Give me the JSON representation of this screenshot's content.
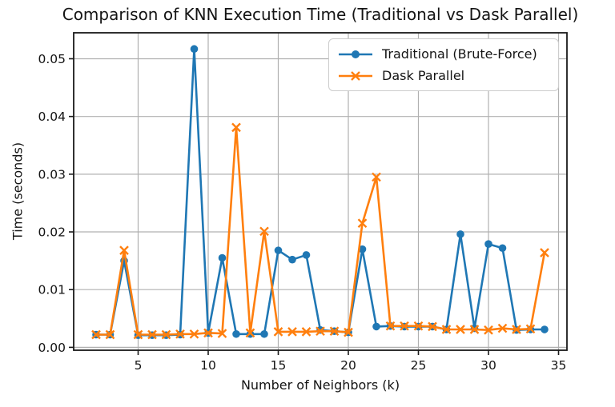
{
  "chart_data": {
    "type": "line",
    "title": "Comparison of KNN Execution Time (Traditional vs Dask Parallel)",
    "xlabel": "Number of Neighbors (k)",
    "ylabel": "Time (seconds)",
    "grid": true,
    "legend_position": "upper right inside",
    "xlim": [
      0.4,
      35.6
    ],
    "ylim": [
      -0.0005,
      0.0545
    ],
    "xticks": [
      5,
      10,
      15,
      20,
      25,
      30,
      35
    ],
    "yticks": [
      0.0,
      0.01,
      0.02,
      0.03,
      0.04,
      0.05
    ],
    "ytick_labels": [
      "0.00",
      "0.01",
      "0.02",
      "0.03",
      "0.04",
      "0.05"
    ],
    "x": [
      2,
      3,
      4,
      5,
      6,
      7,
      8,
      9,
      10,
      11,
      12,
      13,
      14,
      15,
      16,
      17,
      18,
      19,
      20,
      21,
      22,
      23,
      24,
      25,
      26,
      27,
      28,
      29,
      30,
      31,
      32,
      33,
      34
    ],
    "series": [
      {
        "name": "Traditional (Brute-Force)",
        "color": "#1f77b4",
        "marker": "circle",
        "values": [
          0.0022,
          0.0022,
          0.015,
          0.0021,
          0.0021,
          0.0021,
          0.0022,
          0.0517,
          0.0025,
          0.0155,
          0.0023,
          0.0023,
          0.0023,
          0.0168,
          0.0152,
          0.016,
          0.003,
          0.0028,
          0.0026,
          0.017,
          0.0036,
          0.0037,
          0.0036,
          0.0036,
          0.0036,
          0.0031,
          0.0196,
          0.0033,
          0.0179,
          0.0172,
          0.003,
          0.0031,
          0.0031
        ]
      },
      {
        "name": "Dask Parallel",
        "color": "#ff7f0e",
        "marker": "x",
        "values": [
          0.0022,
          0.0022,
          0.0168,
          0.0022,
          0.0022,
          0.0022,
          0.0023,
          0.0023,
          0.0025,
          0.0024,
          0.0381,
          0.0025,
          0.0201,
          0.0027,
          0.0027,
          0.0027,
          0.0028,
          0.0028,
          0.0026,
          0.0215,
          0.0295,
          0.0037,
          0.0037,
          0.0037,
          0.0036,
          0.0031,
          0.0031,
          0.0031,
          0.003,
          0.0033,
          0.0031,
          0.0032,
          0.0164
        ]
      }
    ],
    "colors": {
      "grid": "#b0b0b0",
      "spine": "#1a1a1a",
      "background": "#ffffff",
      "text": "#141414"
    }
  }
}
